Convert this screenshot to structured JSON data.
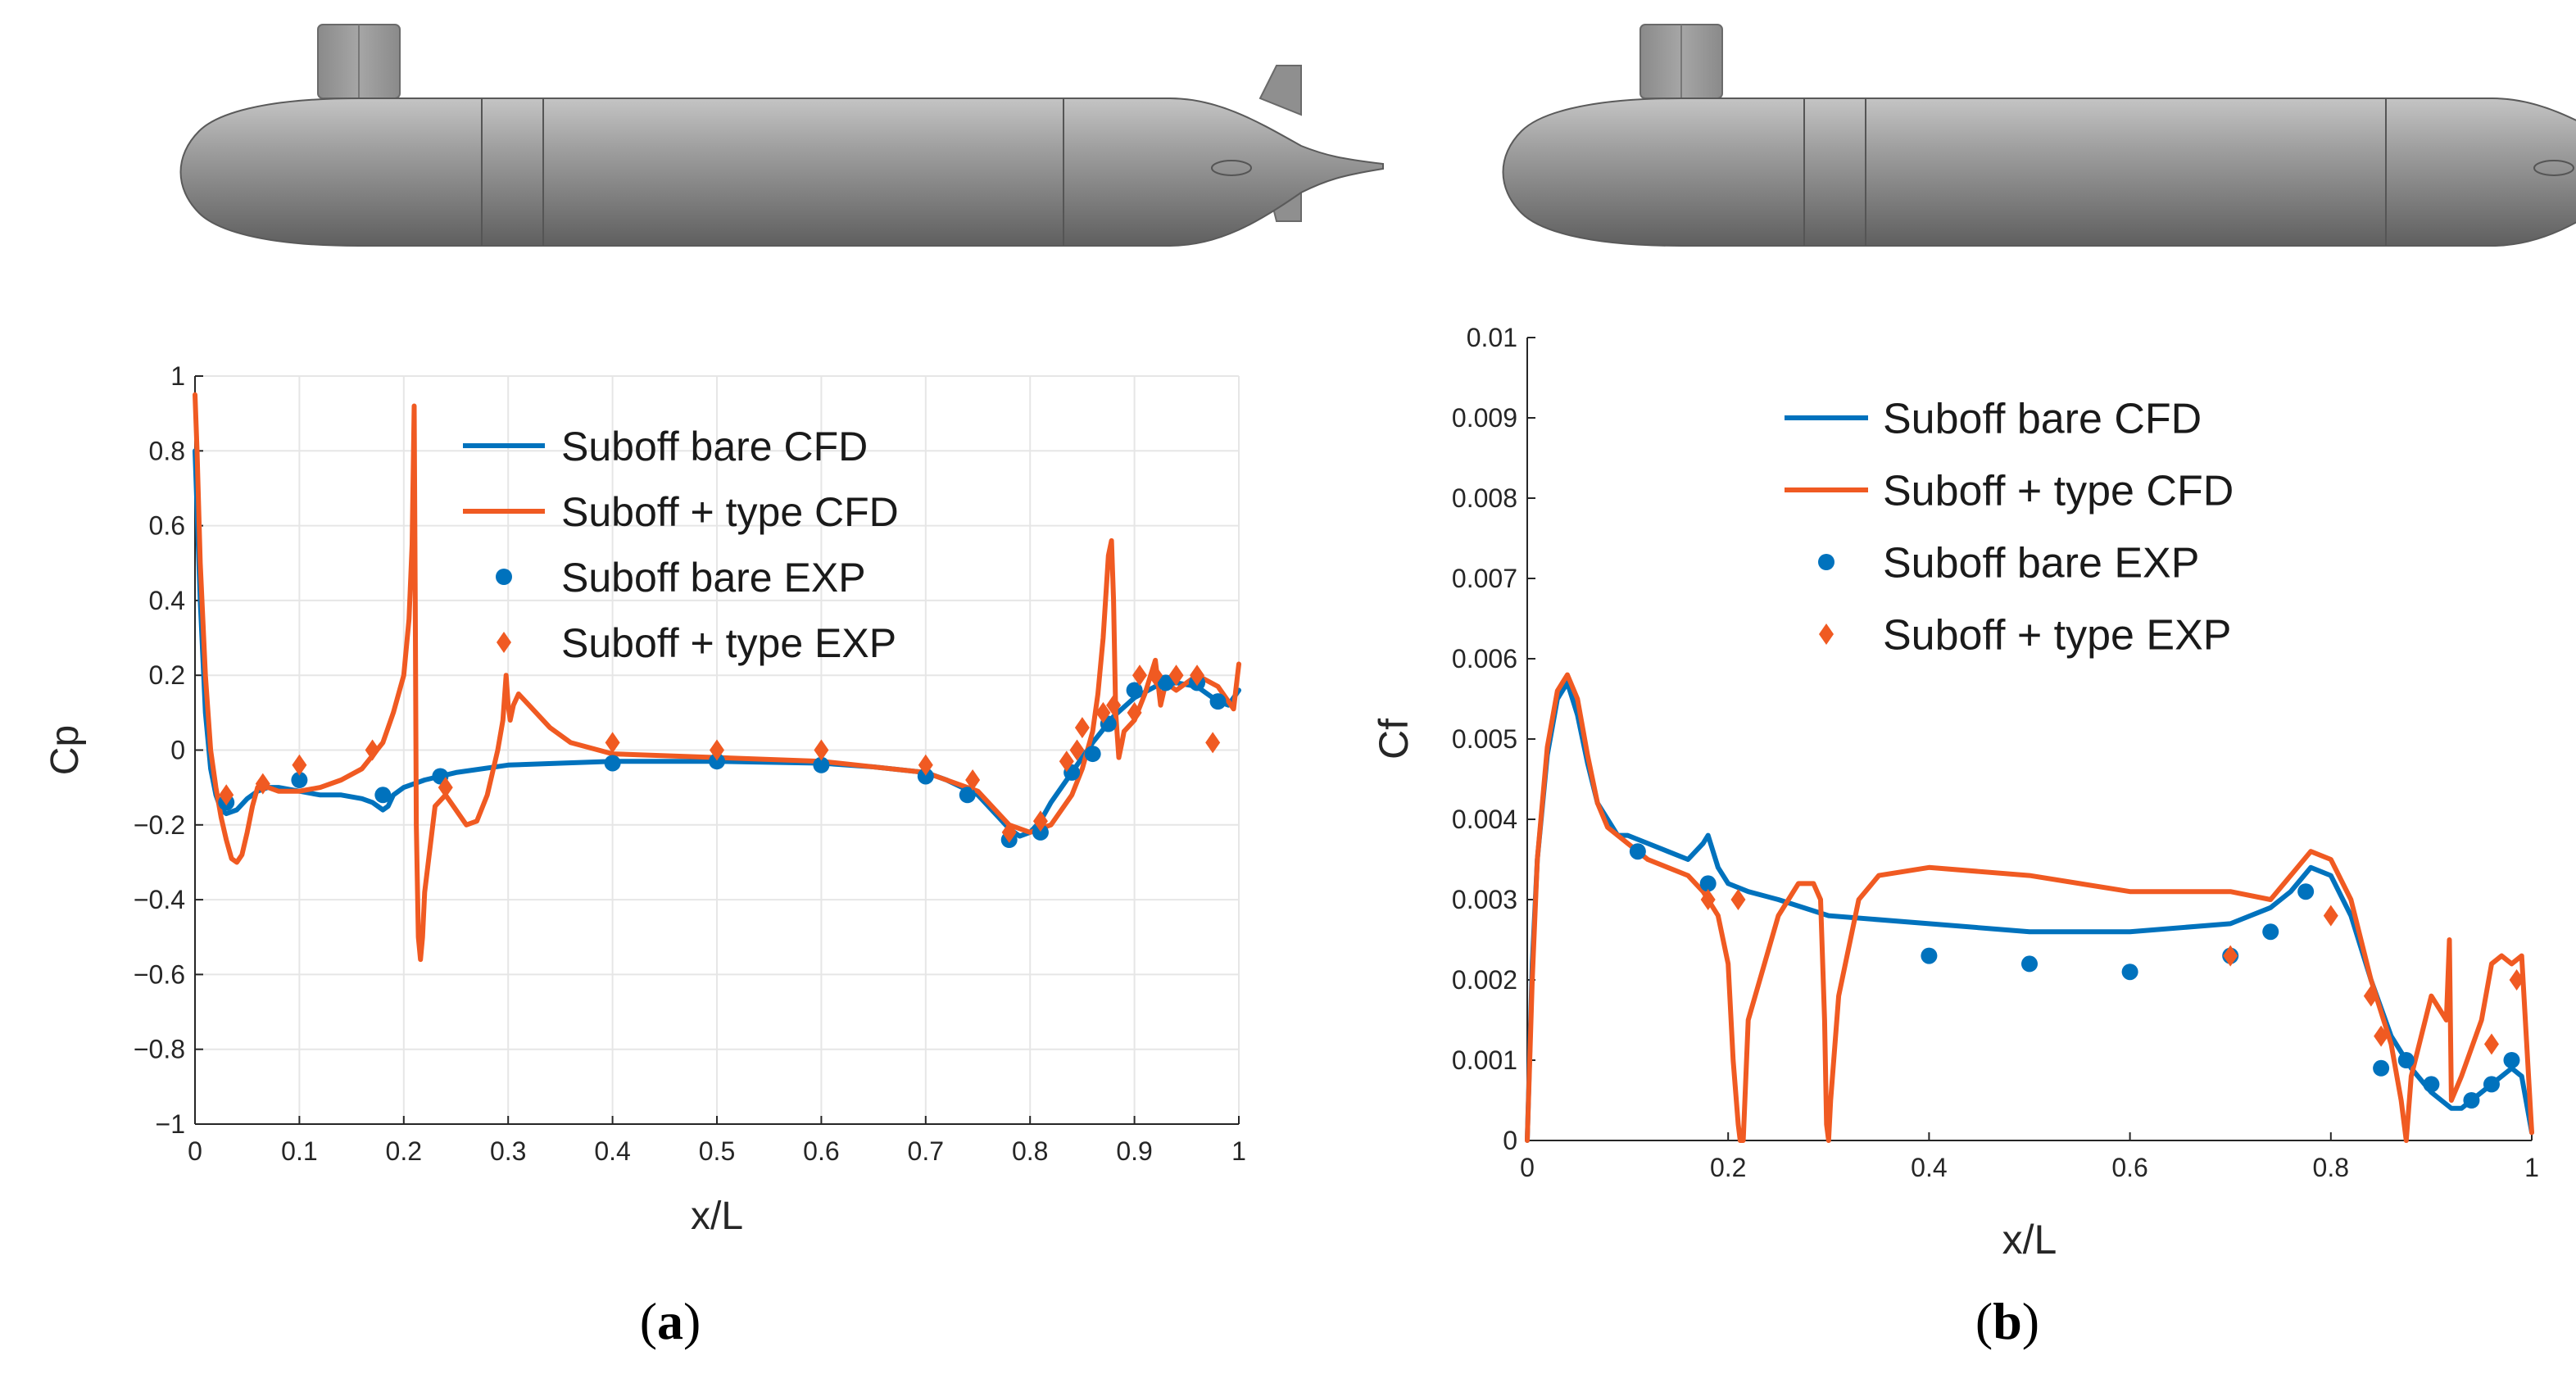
{
  "figure": {
    "panel_a_label": "a",
    "panel_b_label": "b",
    "model_image": "submarine-hull-with-sail-and-stern-fins"
  },
  "colors": {
    "blue": "#0072BD",
    "orange": "#F05A22",
    "grid": "#e6e6e6",
    "axis": "#262626",
    "hull": "#9a9a9a"
  },
  "chart_data": [
    {
      "id": "cp",
      "type": "line",
      "xlabel": "x/L",
      "ylabel": "Cp",
      "xlim": [
        0,
        1
      ],
      "ylim": [
        -1,
        1
      ],
      "xticks": [
        0,
        0.1,
        0.2,
        0.3,
        0.4,
        0.5,
        0.6,
        0.7,
        0.8,
        0.9,
        1
      ],
      "yticks": [
        -1,
        -0.8,
        -0.6,
        -0.4,
        -0.2,
        0,
        0.2,
        0.4,
        0.6,
        0.8,
        1
      ],
      "xticklabels": [
        "0",
        "0.1",
        "0.2",
        "0.3",
        "0.4",
        "0.5",
        "0.6",
        "0.7",
        "0.8",
        "0.9",
        "1"
      ],
      "yticklabels": [
        "−1",
        "−0.8",
        "−0.6",
        "−0.4",
        "−0.2",
        "0",
        "0.2",
        "0.4",
        "0.6",
        "0.8",
        "1"
      ],
      "grid": true,
      "legend_position": "top-right",
      "series": [
        {
          "name": "Suboff bare CFD",
          "kind": "line",
          "color": "#0072BD",
          "x": [
            0,
            0.005,
            0.01,
            0.015,
            0.02,
            0.025,
            0.03,
            0.04,
            0.05,
            0.06,
            0.07,
            0.08,
            0.1,
            0.12,
            0.14,
            0.16,
            0.17,
            0.18,
            0.185,
            0.19,
            0.2,
            0.22,
            0.25,
            0.3,
            0.35,
            0.4,
            0.5,
            0.6,
            0.65,
            0.7,
            0.72,
            0.75,
            0.77,
            0.78,
            0.79,
            0.8,
            0.81,
            0.82,
            0.84,
            0.86,
            0.88,
            0.9,
            0.92,
            0.94,
            0.96,
            0.98,
            0.99,
            1.0
          ],
          "y": [
            0.8,
            0.4,
            0.1,
            -0.05,
            -0.12,
            -0.16,
            -0.17,
            -0.16,
            -0.13,
            -0.11,
            -0.1,
            -0.1,
            -0.11,
            -0.12,
            -0.12,
            -0.13,
            -0.14,
            -0.16,
            -0.15,
            -0.12,
            -0.1,
            -0.08,
            -0.06,
            -0.04,
            -0.035,
            -0.03,
            -0.03,
            -0.035,
            -0.045,
            -0.06,
            -0.08,
            -0.12,
            -0.18,
            -0.21,
            -0.23,
            -0.22,
            -0.19,
            -0.14,
            -0.06,
            0.02,
            0.09,
            0.14,
            0.17,
            0.18,
            0.17,
            0.13,
            0.12,
            0.16
          ]
        },
        {
          "name": "Suboff + type CFD",
          "kind": "line",
          "color": "#F05A22",
          "x": [
            0,
            0.002,
            0.005,
            0.01,
            0.015,
            0.02,
            0.025,
            0.03,
            0.035,
            0.04,
            0.045,
            0.05,
            0.055,
            0.06,
            0.07,
            0.08,
            0.1,
            0.12,
            0.14,
            0.16,
            0.18,
            0.19,
            0.2,
            0.205,
            0.208,
            0.21,
            0.211,
            0.212,
            0.214,
            0.216,
            0.218,
            0.22,
            0.23,
            0.24,
            0.25,
            0.26,
            0.27,
            0.28,
            0.29,
            0.295,
            0.298,
            0.3,
            0.302,
            0.305,
            0.31,
            0.32,
            0.34,
            0.36,
            0.4,
            0.5,
            0.6,
            0.7,
            0.75,
            0.78,
            0.8,
            0.82,
            0.84,
            0.85,
            0.86,
            0.865,
            0.87,
            0.875,
            0.878,
            0.88,
            0.882,
            0.885,
            0.888,
            0.89,
            0.9,
            0.91,
            0.92,
            0.925,
            0.93,
            0.94,
            0.96,
            0.98,
            0.99,
            0.995,
            1.0
          ],
          "y": [
            0.95,
            0.8,
            0.5,
            0.2,
            0.0,
            -0.1,
            -0.18,
            -0.24,
            -0.29,
            -0.3,
            -0.28,
            -0.22,
            -0.15,
            -0.1,
            -0.1,
            -0.11,
            -0.11,
            -0.1,
            -0.08,
            -0.05,
            0.02,
            0.1,
            0.2,
            0.35,
            0.55,
            0.92,
            0.4,
            -0.2,
            -0.5,
            -0.56,
            -0.5,
            -0.38,
            -0.15,
            -0.12,
            -0.16,
            -0.2,
            -0.19,
            -0.12,
            0.0,
            0.08,
            0.2,
            0.12,
            0.08,
            0.12,
            0.15,
            0.12,
            0.06,
            0.02,
            -0.01,
            -0.02,
            -0.03,
            -0.06,
            -0.11,
            -0.2,
            -0.22,
            -0.2,
            -0.12,
            -0.05,
            0.05,
            0.15,
            0.3,
            0.52,
            0.56,
            0.4,
            0.1,
            -0.02,
            0.02,
            0.05,
            0.08,
            0.15,
            0.24,
            0.12,
            0.18,
            0.16,
            0.2,
            0.17,
            0.13,
            0.11,
            0.23
          ]
        },
        {
          "name": "Suboff bare EXP",
          "kind": "markers",
          "marker": "circle",
          "color": "#0072BD",
          "x": [
            0.03,
            0.1,
            0.18,
            0.235,
            0.4,
            0.5,
            0.6,
            0.7,
            0.74,
            0.78,
            0.81,
            0.84,
            0.86,
            0.875,
            0.9,
            0.93,
            0.96,
            0.98
          ],
          "y": [
            -0.14,
            -0.08,
            -0.12,
            -0.07,
            -0.035,
            -0.03,
            -0.04,
            -0.07,
            -0.12,
            -0.24,
            -0.22,
            -0.06,
            -0.01,
            0.07,
            0.16,
            0.18,
            0.18,
            0.13
          ]
        },
        {
          "name": "Suboff + type EXP",
          "kind": "markers",
          "marker": "diamond",
          "color": "#F05A22",
          "x": [
            0.03,
            0.065,
            0.1,
            0.17,
            0.24,
            0.4,
            0.5,
            0.6,
            0.7,
            0.745,
            0.78,
            0.81,
            0.835,
            0.845,
            0.85,
            0.87,
            0.88,
            0.9,
            0.905,
            0.92,
            0.94,
            0.96,
            0.975
          ],
          "y": [
            -0.12,
            -0.09,
            -0.04,
            0.0,
            -0.1,
            0.02,
            0.0,
            0.0,
            -0.04,
            -0.08,
            -0.22,
            -0.19,
            -0.03,
            0.0,
            0.06,
            0.1,
            0.12,
            0.1,
            0.2,
            0.2,
            0.2,
            0.2,
            0.02
          ]
        }
      ]
    },
    {
      "id": "cf",
      "type": "line",
      "xlabel": "x/L",
      "ylabel": "Cf",
      "xlim": [
        0,
        1
      ],
      "ylim": [
        0,
        0.01
      ],
      "xticks": [
        0,
        0.2,
        0.4,
        0.6,
        0.8,
        1
      ],
      "yticks": [
        0,
        0.001,
        0.002,
        0.003,
        0.004,
        0.005,
        0.006,
        0.007,
        0.008,
        0.009,
        0.01
      ],
      "xticklabels": [
        "0",
        "0.2",
        "0.4",
        "0.6",
        "0.8",
        "1"
      ],
      "yticklabels": [
        "0",
        "0.001",
        "0.002",
        "0.003",
        "0.004",
        "0.005",
        "0.006",
        "0.007",
        "0.008",
        "0.009",
        "0.01"
      ],
      "grid": false,
      "legend_position": "top",
      "series": [
        {
          "name": "Suboff bare CFD",
          "kind": "line",
          "color": "#0072BD",
          "x": [
            0,
            0.005,
            0.01,
            0.02,
            0.03,
            0.04,
            0.05,
            0.06,
            0.07,
            0.08,
            0.09,
            0.1,
            0.12,
            0.14,
            0.16,
            0.175,
            0.18,
            0.19,
            0.2,
            0.22,
            0.25,
            0.3,
            0.4,
            0.5,
            0.6,
            0.7,
            0.74,
            0.76,
            0.78,
            0.8,
            0.82,
            0.84,
            0.86,
            0.88,
            0.9,
            0.92,
            0.93,
            0.94,
            0.96,
            0.98,
            0.99,
            1.0
          ],
          "y": [
            0,
            0.0022,
            0.0035,
            0.0048,
            0.0055,
            0.0057,
            0.0053,
            0.0047,
            0.0042,
            0.004,
            0.0038,
            0.0038,
            0.0037,
            0.0036,
            0.0035,
            0.0037,
            0.0038,
            0.0034,
            0.0032,
            0.0031,
            0.003,
            0.0028,
            0.0027,
            0.0026,
            0.0026,
            0.0027,
            0.0029,
            0.0031,
            0.0034,
            0.0033,
            0.0028,
            0.002,
            0.0013,
            0.0009,
            0.0006,
            0.0004,
            0.0004,
            0.0005,
            0.0007,
            0.0009,
            0.0008,
            0.0001
          ]
        },
        {
          "name": "Suboff + type CFD",
          "kind": "line",
          "color": "#F05A22",
          "x": [
            0,
            0.005,
            0.01,
            0.02,
            0.03,
            0.04,
            0.05,
            0.06,
            0.07,
            0.08,
            0.1,
            0.12,
            0.14,
            0.16,
            0.175,
            0.19,
            0.2,
            0.205,
            0.21,
            0.212,
            0.215,
            0.22,
            0.25,
            0.27,
            0.285,
            0.292,
            0.296,
            0.298,
            0.3,
            0.302,
            0.31,
            0.33,
            0.35,
            0.4,
            0.5,
            0.6,
            0.7,
            0.74,
            0.76,
            0.78,
            0.8,
            0.82,
            0.84,
            0.86,
            0.87,
            0.875,
            0.88,
            0.9,
            0.915,
            0.918,
            0.92,
            0.93,
            0.95,
            0.96,
            0.97,
            0.98,
            0.99,
            1.0
          ],
          "y": [
            0,
            0.002,
            0.0035,
            0.0049,
            0.0056,
            0.0058,
            0.0055,
            0.0048,
            0.0042,
            0.0039,
            0.0037,
            0.0035,
            0.0034,
            0.0033,
            0.0031,
            0.0028,
            0.0022,
            0.001,
            0.0002,
            0.0,
            0.0,
            0.0015,
            0.0028,
            0.0032,
            0.0032,
            0.003,
            0.0015,
            0.0002,
            0.0,
            0.0005,
            0.0018,
            0.003,
            0.0033,
            0.0034,
            0.0033,
            0.0031,
            0.0031,
            0.003,
            0.0033,
            0.0036,
            0.0035,
            0.003,
            0.002,
            0.0012,
            0.0005,
            0.0,
            0.0008,
            0.0018,
            0.0015,
            0.0025,
            0.0005,
            0.0008,
            0.0015,
            0.0022,
            0.0023,
            0.0022,
            0.0023,
            0.0001
          ]
        },
        {
          "name": "Suboff bare EXP",
          "kind": "markers",
          "marker": "circle",
          "color": "#0072BD",
          "x": [
            0.11,
            0.18,
            0.4,
            0.5,
            0.6,
            0.7,
            0.74,
            0.775,
            0.85,
            0.875,
            0.9,
            0.94,
            0.96,
            0.98
          ],
          "y": [
            0.0036,
            0.0032,
            0.0023,
            0.0022,
            0.0021,
            0.0023,
            0.0026,
            0.0031,
            0.0009,
            0.001,
            0.0007,
            0.0005,
            0.0007,
            0.001
          ]
        },
        {
          "name": "Suboff + type EXP",
          "kind": "markers",
          "marker": "diamond",
          "color": "#F05A22",
          "x": [
            0.18,
            0.21,
            0.7,
            0.8,
            0.84,
            0.85,
            0.96,
            0.985
          ],
          "y": [
            0.003,
            0.003,
            0.0023,
            0.0028,
            0.0018,
            0.0013,
            0.0012,
            0.002
          ]
        }
      ]
    }
  ]
}
